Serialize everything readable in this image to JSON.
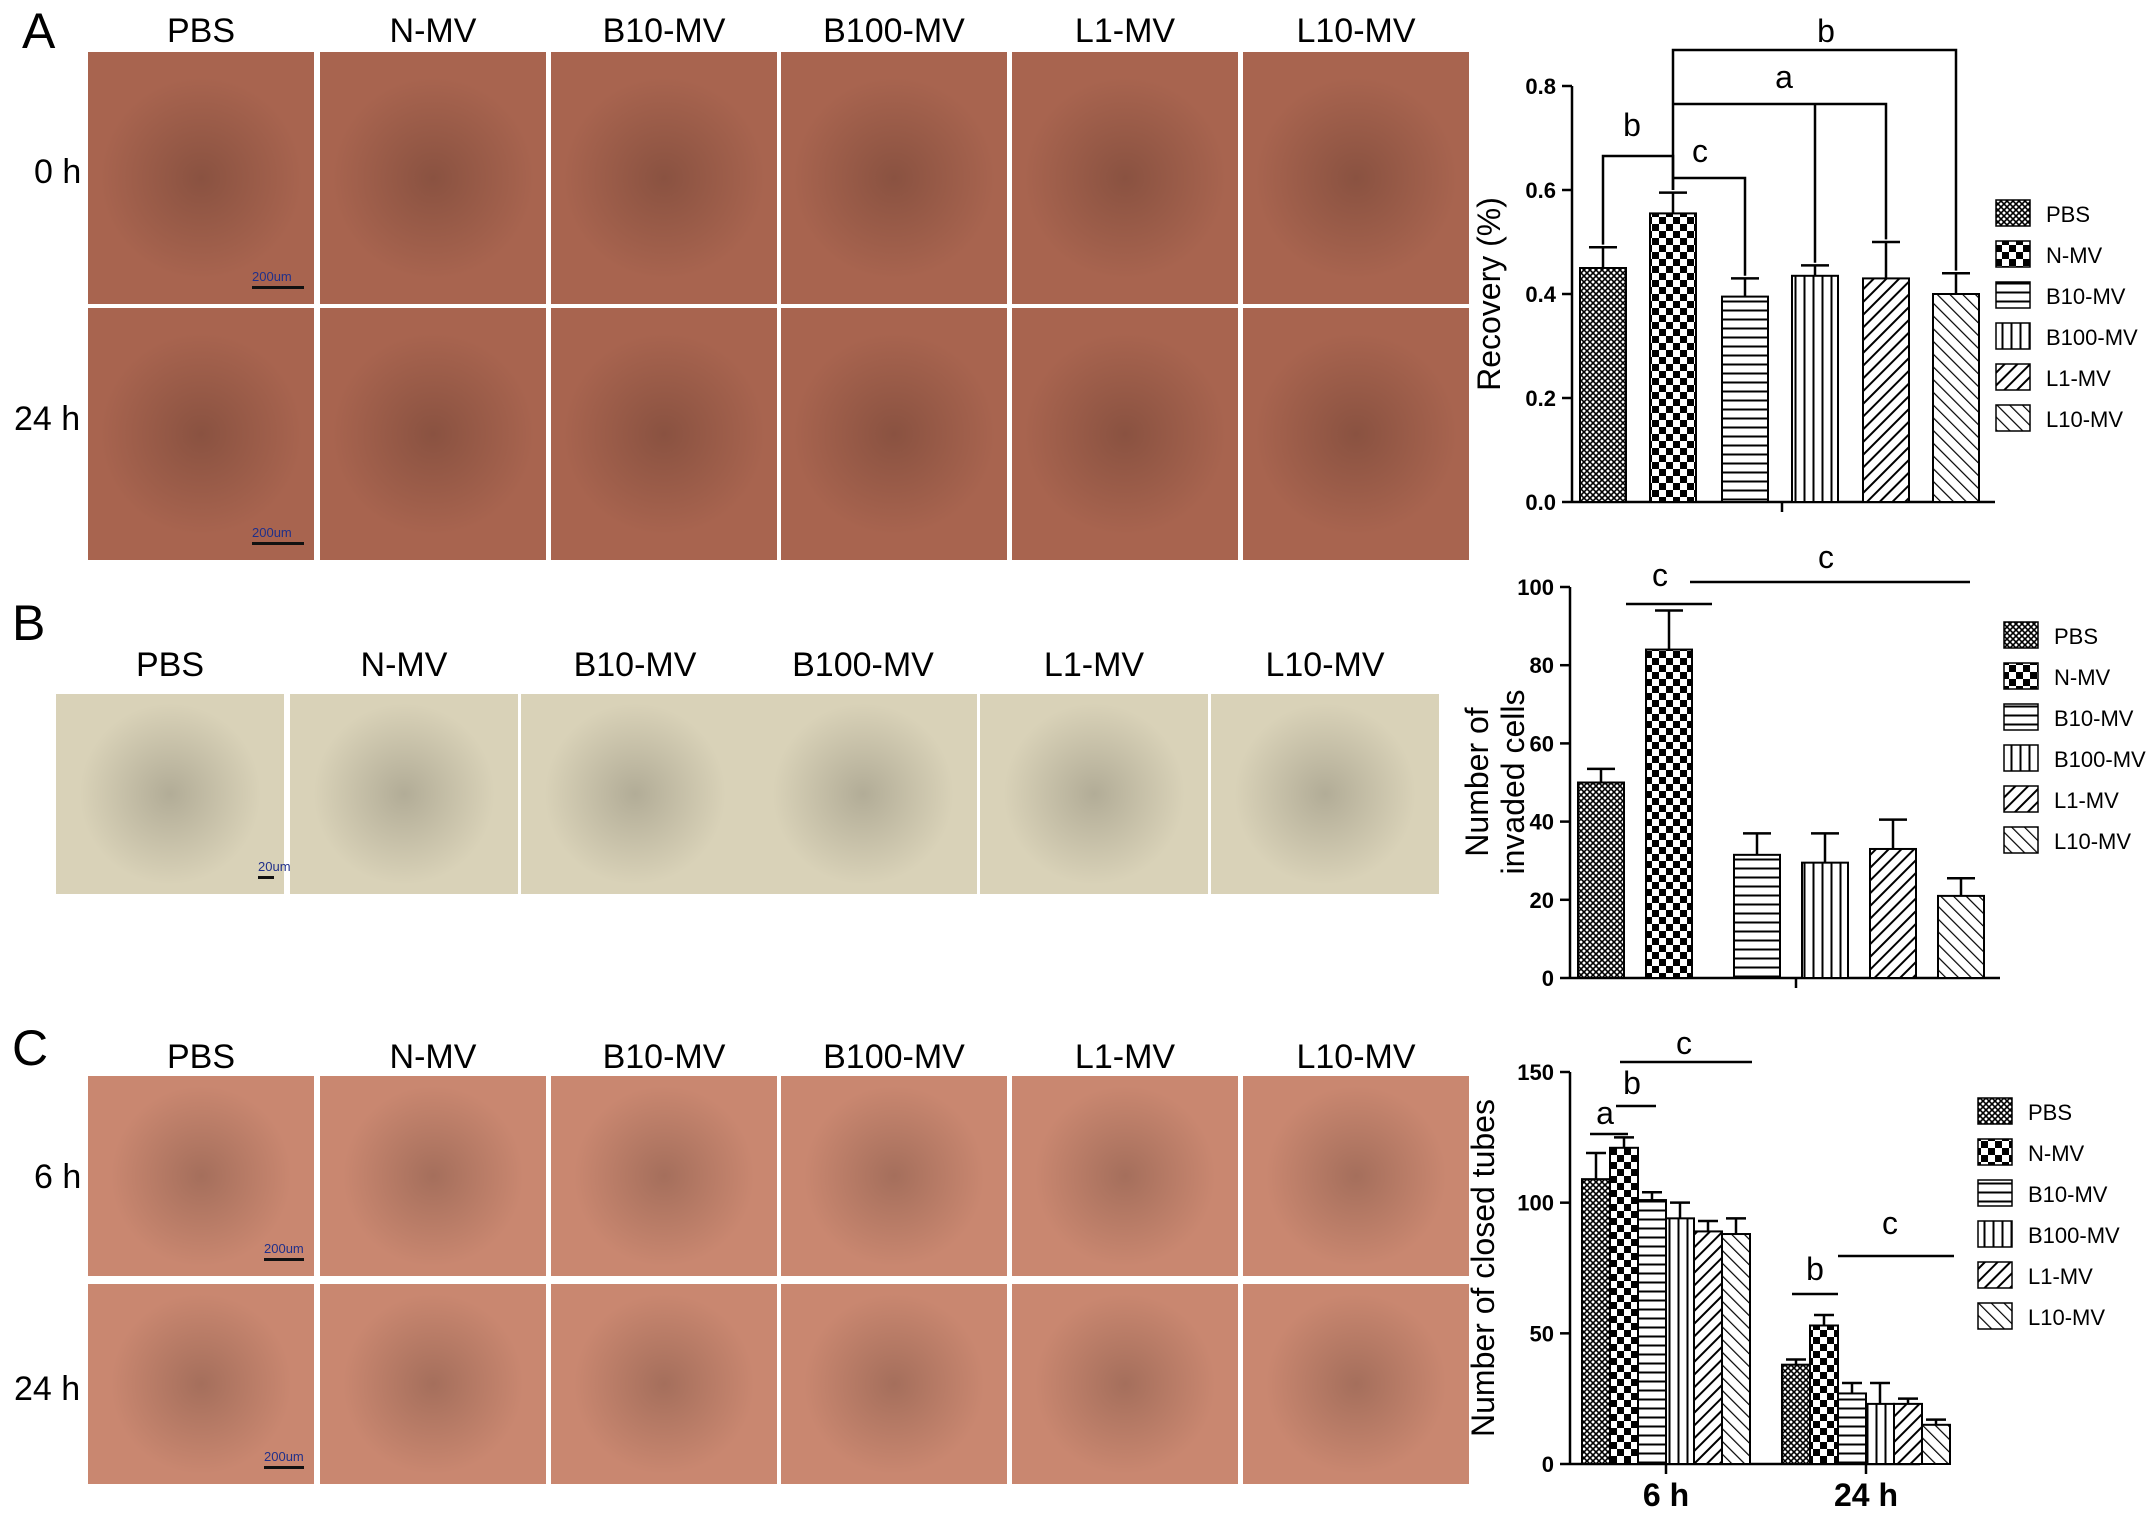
{
  "panelA": {
    "letter": "A",
    "columns": [
      "PBS",
      "N-MV",
      "B10-MV",
      "B100-MV",
      "L1-MV",
      "L10-MV"
    ],
    "rows": [
      "0 h",
      "24 h"
    ],
    "scale_label": "200um",
    "tile_color": "#a8644f"
  },
  "panelB": {
    "letter": "B",
    "columns": [
      "PBS",
      "N-MV",
      "B10-MV",
      "B100-MV",
      "L1-MV",
      "L10-MV"
    ],
    "scale_label": "20um",
    "tile_color": "#d9d2b8"
  },
  "panelC": {
    "letter": "C",
    "columns": [
      "PBS",
      "N-MV",
      "B10-MV",
      "B100-MV",
      "L1-MV",
      "L10-MV"
    ],
    "rows": [
      "6 h",
      "24 h"
    ],
    "scale_label": "200um",
    "tile_color": "#c98770"
  },
  "chart_data": [
    {
      "type": "bar",
      "ylabel": "Recovery (%)",
      "ylim": [
        0,
        0.8
      ],
      "yticks": [
        "0.0",
        "0.2",
        "0.4",
        "0.6",
        "0.8"
      ],
      "categories": [
        "PBS",
        "N-MV",
        "B10-MV",
        "B100-MV",
        "L1-MV",
        "L10-MV"
      ],
      "values": [
        0.45,
        0.555,
        0.395,
        0.435,
        0.43,
        0.4
      ],
      "errors": [
        0.04,
        0.04,
        0.035,
        0.02,
        0.07,
        0.04
      ],
      "legend": [
        "PBS",
        "N-MV",
        "B10-MV",
        "B100-MV",
        "L1-MV",
        "L10-MV"
      ],
      "legend_position": "right",
      "annotations": [
        "b",
        "c",
        "a",
        "b"
      ]
    },
    {
      "type": "bar",
      "ylabel": "Number of invaded cells",
      "ylim": [
        0,
        100
      ],
      "yticks": [
        "0",
        "20",
        "40",
        "60",
        "80",
        "100"
      ],
      "categories": [
        "PBS",
        "N-MV",
        "B10-MV",
        "B100-MV",
        "L1-MV",
        "L10-MV"
      ],
      "values": [
        50,
        84,
        31.5,
        29.5,
        33,
        21
      ],
      "errors": [
        3.5,
        10,
        5.5,
        7.5,
        7.5,
        4.5
      ],
      "legend": [
        "PBS",
        "N-MV",
        "B10-MV",
        "B100-MV",
        "L1-MV",
        "L10-MV"
      ],
      "legend_position": "right",
      "annotations": [
        "c",
        "c"
      ]
    },
    {
      "type": "bar",
      "ylabel": "Number of closed tubes",
      "ylim": [
        0,
        150
      ],
      "yticks": [
        "0",
        "50",
        "100",
        "150"
      ],
      "categories": [
        "6 h",
        "24 h"
      ],
      "series": [
        {
          "name": "PBS",
          "values": [
            109,
            38
          ],
          "errors": [
            10,
            2
          ]
        },
        {
          "name": "N-MV",
          "values": [
            121,
            53
          ],
          "errors": [
            4,
            4
          ]
        },
        {
          "name": "B10-MV",
          "values": [
            101,
            27
          ],
          "errors": [
            3,
            4
          ]
        },
        {
          "name": "B100-MV",
          "values": [
            94,
            23
          ],
          "errors": [
            6,
            8
          ]
        },
        {
          "name": "L1-MV",
          "values": [
            89,
            23
          ],
          "errors": [
            4,
            2
          ]
        },
        {
          "name": "L10-MV",
          "values": [
            88,
            15
          ],
          "errors": [
            6,
            2
          ]
        }
      ],
      "legend_position": "right",
      "annotations": [
        "a",
        "b",
        "c",
        "b",
        "c"
      ]
    }
  ]
}
